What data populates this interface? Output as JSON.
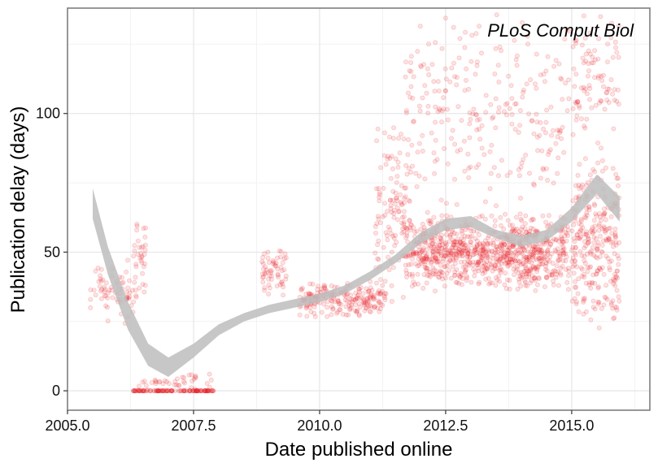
{
  "chart_data": {
    "type": "scatter",
    "annotation": "PLoS Comput Biol",
    "xlabel": "Date published online",
    "ylabel": "Publication delay (days)",
    "xlim": [
      2005.0,
      2016.55
    ],
    "ylim": [
      -7,
      138
    ],
    "x_ticks": [
      2005.0,
      2007.5,
      2010.0,
      2012.5,
      2015.0
    ],
    "x_tick_labels": [
      "2005.0",
      "2007.5",
      "2010.0",
      "2012.5",
      "2015.0"
    ],
    "y_ticks": [
      0,
      50,
      100
    ],
    "y_tick_labels": [
      "0",
      "50",
      "100"
    ],
    "grid": true,
    "point_color": "#e8141c",
    "point_alpha": 0.12,
    "smooth_color": "#bdbdbd",
    "point_clusters": [
      {
        "x": [
          2005.45,
          2006.35
        ],
        "y": [
          22,
          50
        ],
        "n": 70
      },
      {
        "x": [
          2006.3,
          2006.55
        ],
        "y": [
          30,
          66
        ],
        "n": 35
      },
      {
        "x": [
          2006.3,
          2007.9
        ],
        "y": [
          0,
          0
        ],
        "n": 120
      },
      {
        "x": [
          2006.4,
          2007.95
        ],
        "y": [
          0,
          7
        ],
        "n": 40
      },
      {
        "x": [
          2008.85,
          2009.35
        ],
        "y": [
          34,
          52
        ],
        "n": 60
      },
      {
        "x": [
          2009.6,
          2011.3
        ],
        "y": [
          26,
          40
        ],
        "n": 220
      },
      {
        "x": [
          2011.1,
          2011.75
        ],
        "y": [
          30,
          100
        ],
        "n": 120
      },
      {
        "x": [
          2011.7,
          2014.95
        ],
        "y": [
          35,
          65
        ],
        "n": 700
      },
      {
        "x": [
          2011.7,
          2014.95
        ],
        "y": [
          60,
          140
        ],
        "n": 260
      },
      {
        "x": [
          2012.0,
          2014.5
        ],
        "y": [
          40,
          58
        ],
        "n": 200
      },
      {
        "x": [
          2015.0,
          2015.95
        ],
        "y": [
          22,
          85
        ],
        "n": 280
      },
      {
        "x": [
          2015.0,
          2015.95
        ],
        "y": [
          85,
          140
        ],
        "n": 90
      }
    ],
    "smooth": {
      "x": [
        2005.5,
        2005.8,
        2006.2,
        2006.6,
        2007.0,
        2007.5,
        2008.0,
        2008.5,
        2009.0,
        2009.5,
        2010.0,
        2010.5,
        2011.0,
        2011.5,
        2012.0,
        2012.5,
        2013.0,
        2013.5,
        2014.0,
        2014.5,
        2015.0,
        2015.5,
        2015.95
      ],
      "lo": [
        62,
        42,
        22,
        9,
        5,
        12,
        20,
        25,
        28,
        30,
        32,
        35,
        40,
        46,
        53,
        58,
        59,
        55,
        52,
        54,
        61,
        71,
        61
      ],
      "hi": [
        73,
        52,
        32,
        17,
        12,
        17,
        24,
        28,
        31,
        33,
        35,
        38,
        43,
        49,
        57,
        62,
        63,
        58,
        56,
        58,
        66,
        78,
        70
      ]
    }
  }
}
